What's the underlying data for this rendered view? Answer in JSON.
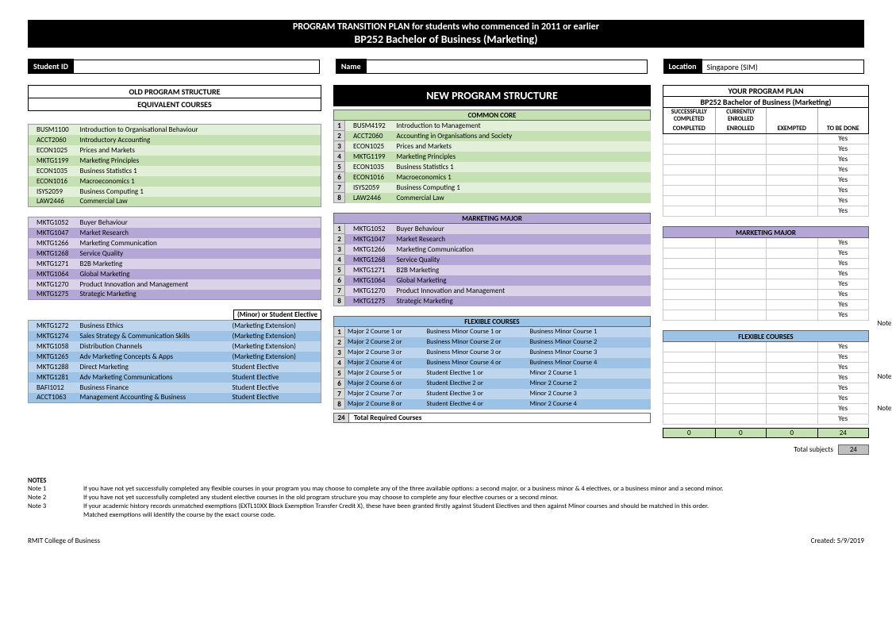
{
  "title": {
    "line1": "PROGRAM TRANSITION PLAN for students who commenced in 2011 or earlier",
    "line2": "BP252  Bachelor of Business (Marketing)"
  },
  "fields": {
    "studentId": {
      "label": "Student ID",
      "value": ""
    },
    "name": {
      "label": "Name",
      "value": ""
    },
    "location": {
      "label": "Location",
      "value": "Singapore (SIM)"
    }
  },
  "old": {
    "header1": "OLD PROGRAM STRUCTURE",
    "header2": "EQUIVALENT COURSES",
    "elective_header": "(Minor) or Student Elective",
    "core": [
      {
        "code": "BUSM1100",
        "title": "Introduction to Organisational Behaviour"
      },
      {
        "code": "ACCT2060",
        "title": "Introductory Accounting"
      },
      {
        "code": "ECON1025",
        "title": "Prices and Markets"
      },
      {
        "code": "MKTG1199",
        "title": "Marketing Principles"
      },
      {
        "code": "ECON1035",
        "title": "Business Statistics 1"
      },
      {
        "code": "ECON1016",
        "title": "Macroeconomics 1"
      },
      {
        "code": "ISYS2059",
        "title": "Business Computing 1"
      },
      {
        "code": "LAW2446",
        "title": "Commercial Law"
      }
    ],
    "major": [
      {
        "code": "MKTG1052",
        "title": "Buyer Behaviour"
      },
      {
        "code": "MKTG1047",
        "title": "Market Research"
      },
      {
        "code": "MKTG1266",
        "title": "Marketing Communication"
      },
      {
        "code": "MKTG1268",
        "title": "Service Quality"
      },
      {
        "code": "MKTG1271",
        "title": "B2B Marketing"
      },
      {
        "code": "MKTG1064",
        "title": "Global Marketing"
      },
      {
        "code": "MKTG1270",
        "title": "Product Innovation and Management"
      },
      {
        "code": "MKTG1275",
        "title": "Strategic Marketing"
      }
    ],
    "flex": [
      {
        "code": "MKTG1272",
        "title": "Business Ethics",
        "type": "(Marketing Extension)"
      },
      {
        "code": "MKTG1274",
        "title": "Sales Strategy & Communication Skills",
        "type": "(Marketing Extension)"
      },
      {
        "code": "MKTG1058",
        "title": "Distribution Channels",
        "type": "(Marketing Extension)"
      },
      {
        "code": "MKTG1265",
        "title": "Adv Marketing Concepts & Apps",
        "type": "(Marketing Extension)"
      },
      {
        "code": "MKTG1288",
        "title": "Direct Marketing",
        "type": "Student Elective"
      },
      {
        "code": "MKTG1281",
        "title": "Adv Marketing Communications",
        "type": "Student Elective"
      },
      {
        "code": "BAFI1012",
        "title": "Business Finance",
        "type": "Student Elective"
      },
      {
        "code": "ACCT1063",
        "title": "Management Accounting & Business",
        "type": "Student Elective"
      }
    ]
  },
  "new": {
    "header": "NEW PROGRAM STRUCTURE",
    "core_header": "COMMON CORE",
    "major_header": "MARKETING MAJOR",
    "flex_header": "FLEXIBLE COURSES",
    "total_num": "24",
    "total_label": "Total Required Courses",
    "core": [
      {
        "n": "1",
        "code": "BUSM4192",
        "title": "Introduction to Management"
      },
      {
        "n": "2",
        "code": "ACCT2060",
        "title": "Accounting in Organisations and Society"
      },
      {
        "n": "3",
        "code": "ECON1025",
        "title": "Prices and Markets"
      },
      {
        "n": "4",
        "code": "MKTG1199",
        "title": "Marketing Principles"
      },
      {
        "n": "5",
        "code": "ECON1035",
        "title": "Business Statistics 1"
      },
      {
        "n": "6",
        "code": "ECON1016",
        "title": "Macroeconomics 1"
      },
      {
        "n": "7",
        "code": "ISYS2059",
        "title": "Business Computing 1"
      },
      {
        "n": "8",
        "code": "LAW2446",
        "title": "Commercial Law"
      }
    ],
    "major": [
      {
        "n": "1",
        "code": "MKTG1052",
        "title": "Buyer Behaviour"
      },
      {
        "n": "2",
        "code": "MKTG1047",
        "title": "Market Research"
      },
      {
        "n": "3",
        "code": "MKTG1266",
        "title": "Marketing Communication"
      },
      {
        "n": "4",
        "code": "MKTG1268",
        "title": "Service Quality"
      },
      {
        "n": "5",
        "code": "MKTG1271",
        "title": "B2B Marketing"
      },
      {
        "n": "6",
        "code": "MKTG1064",
        "title": "Global Marketing"
      },
      {
        "n": "7",
        "code": "MKTG1270",
        "title": "Product Innovation and Management"
      },
      {
        "n": "8",
        "code": "MKTG1275",
        "title": "Strategic Marketing"
      }
    ],
    "flex": [
      {
        "n": "1",
        "a": "Major 2 Course 1 or",
        "b": "Business Minor Course 1 or",
        "c": "Business Minor Course 1"
      },
      {
        "n": "2",
        "a": "Major 2 Course 2 or",
        "b": "Business Minor Course 2 or",
        "c": "Business Minor Course 2"
      },
      {
        "n": "3",
        "a": "Major 2 Course 3 or",
        "b": "Business Minor Course 3 or",
        "c": "Business Minor Course 3"
      },
      {
        "n": "4",
        "a": "Major 2 Course 4 or",
        "b": "Business Minor Course 4 or",
        "c": "Business Minor Course 4"
      },
      {
        "n": "5",
        "a": "Major 2 Course 5 or",
        "b": "Student Elective 1 or",
        "c": "Minor 2 Course 1"
      },
      {
        "n": "6",
        "a": "Major 2 Course 6 or",
        "b": "Student Elective 2 or",
        "c": "Minor 2 Course 2"
      },
      {
        "n": "7",
        "a": "Major 2 Course 7 or",
        "b": "Student Elective 3 or",
        "c": "Minor 2 Course 3"
      },
      {
        "n": "8",
        "a": "Major 2 Course 8 or",
        "b": "Student Elective 4 or",
        "c": "Minor 2 Course 4"
      }
    ]
  },
  "plan": {
    "header": "YOUR PROGRAM PLAN",
    "subheader": "BP252  Bachelor of Business (Marketing)",
    "cols": [
      "SUCCESSFULLY COMPLETED",
      "CURRENTLY ENROLLED",
      "EXEMPTED",
      "TO BE DONE"
    ],
    "major_header": "MARKETING MAJOR",
    "flex_header": "FLEXIBLE COURSES",
    "yes": "Yes",
    "note1": "Note 1",
    "note2": "Note 2",
    "note3": "Note 3",
    "totals": [
      "0",
      "0",
      "0",
      "24"
    ],
    "total_subjects_label": "Total subjects",
    "total_subjects_value": "24"
  },
  "notes": {
    "header": "NOTES",
    "n1": {
      "label": "Note 1",
      "text": "If you have not yet successfully completed any flexible courses in your program you may choose to complete any of the three available options:  a second major, or a business minor & 4 electives, or a business minor and a second minor."
    },
    "n2": {
      "label": "Note 2",
      "text": "If you have not yet successfully completed any student elective courses in the old program structure you may choose to complete any four elective courses or a second minor."
    },
    "n3": {
      "label": "Note 3",
      "text": "If your academic history records unmatched exemptions (EXTL10XX Block Exemption Transfer Credit X), these have been granted firstly against Student Electives and then against Minor courses and should be matched in this order."
    },
    "n3b": "Matched exemptions will identify the course by the exact course code."
  },
  "footer": {
    "left": "RMIT College of Business",
    "right": "Created: 5/9/2019"
  }
}
